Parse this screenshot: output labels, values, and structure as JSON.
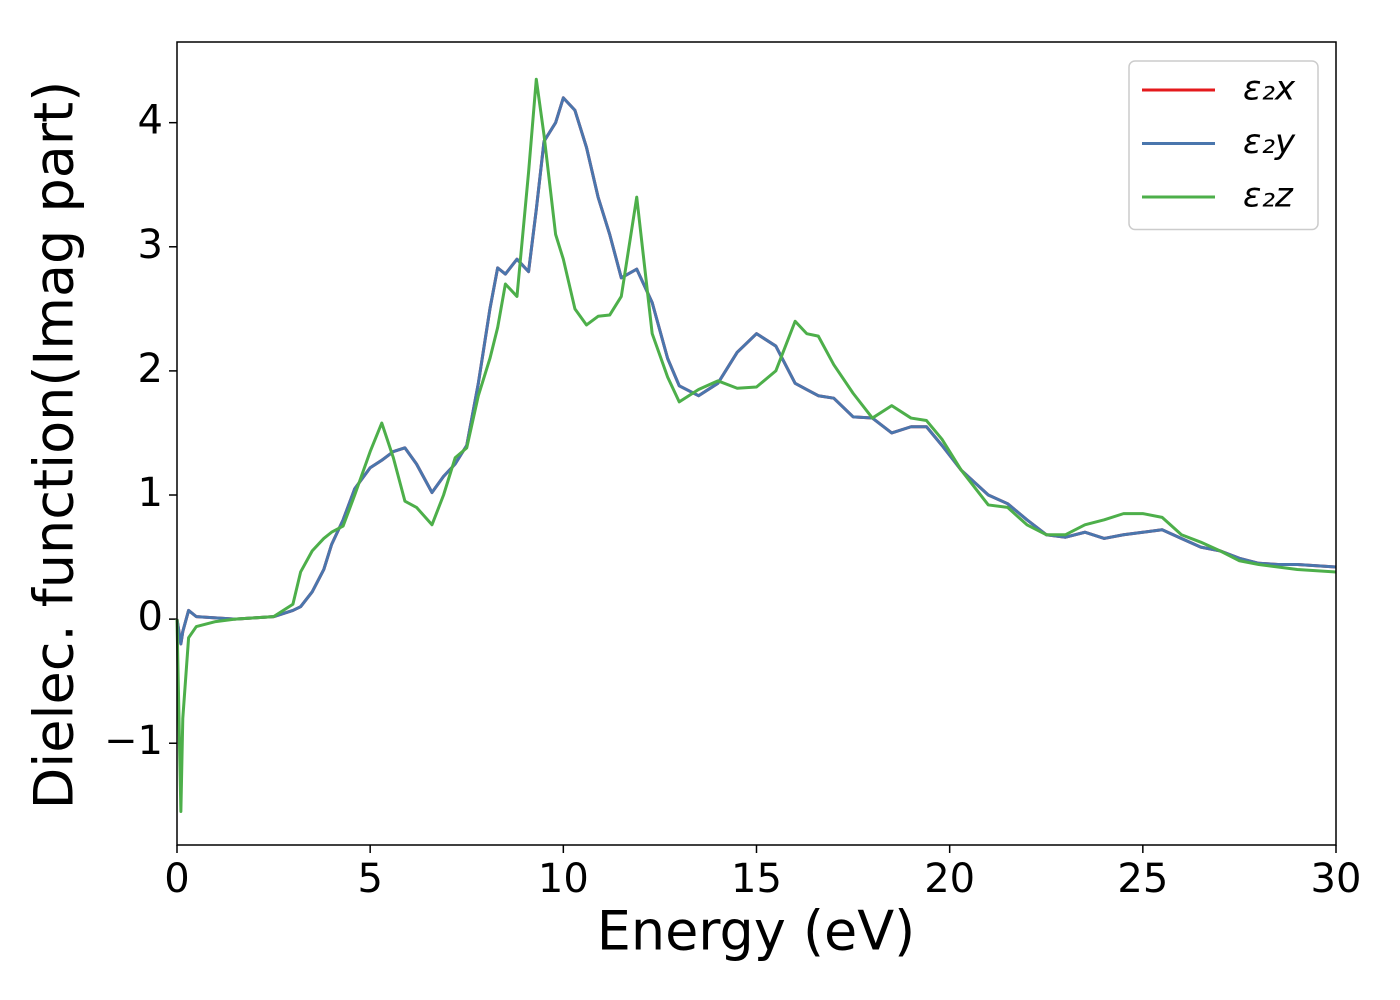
{
  "chart_data": {
    "type": "line",
    "xlabel": "Energy (eV)",
    "ylabel": "Dielec. function(Imag part)",
    "xlim": [
      0,
      30
    ],
    "ylim": [
      -1.82,
      4.65
    ],
    "xticks": [
      0,
      5,
      10,
      15,
      20,
      25,
      30
    ],
    "yticks": [
      {
        "value": -1,
        "label": "−1"
      },
      0,
      1,
      2,
      3,
      4
    ],
    "legend": "upper right",
    "x": [
      0,
      0.1,
      0.15,
      0.3,
      0.5,
      1,
      1.5,
      2,
      2.5,
      3,
      3.2,
      3.5,
      3.8,
      4,
      4.3,
      4.6,
      5,
      5.3,
      5.6,
      5.9,
      6.2,
      6.6,
      6.9,
      7.2,
      7.5,
      7.8,
      8.1,
      8.3,
      8.5,
      8.8,
      9.1,
      9.3,
      9.5,
      9.8,
      10,
      10.3,
      10.6,
      10.9,
      11.2,
      11.5,
      11.9,
      12.3,
      12.7,
      13,
      13.5,
      14,
      14.5,
      15,
      15.5,
      16,
      16.3,
      16.6,
      17,
      17.5,
      18,
      18.5,
      19,
      19.4,
      19.8,
      20.3,
      21,
      21.5,
      22,
      22.5,
      23,
      23.5,
      24,
      24.5,
      25,
      25.5,
      26,
      26.5,
      27,
      27.5,
      28,
      28.5,
      29,
      30
    ],
    "series": [
      {
        "name": "ε₂x",
        "color": "#e41a1c",
        "values": [
          0,
          -0.2,
          -0.1,
          0.07,
          0.02,
          0.01,
          0.0,
          0.01,
          0.02,
          0.07,
          0.1,
          0.22,
          0.4,
          0.6,
          0.8,
          1.05,
          1.22,
          1.28,
          1.35,
          1.38,
          1.25,
          1.02,
          1.15,
          1.25,
          1.4,
          1.9,
          2.5,
          2.83,
          2.78,
          2.9,
          2.8,
          3.3,
          3.85,
          4.0,
          4.2,
          4.1,
          3.8,
          3.4,
          3.1,
          2.75,
          2.82,
          2.55,
          2.1,
          1.88,
          1.8,
          1.9,
          2.15,
          2.3,
          2.2,
          1.9,
          1.85,
          1.8,
          1.78,
          1.63,
          1.62,
          1.5,
          1.55,
          1.55,
          1.4,
          1.2,
          1.0,
          0.93,
          0.8,
          0.68,
          0.66,
          0.7,
          0.65,
          0.68,
          0.7,
          0.72,
          0.65,
          0.58,
          0.55,
          0.49,
          0.45,
          0.44,
          0.44,
          0.42
        ]
      },
      {
        "name": "ε₂y",
        "color": "#4a76ad",
        "values": [
          0,
          -0.2,
          -0.1,
          0.07,
          0.02,
          0.01,
          0.0,
          0.01,
          0.02,
          0.07,
          0.1,
          0.22,
          0.4,
          0.6,
          0.8,
          1.05,
          1.22,
          1.28,
          1.35,
          1.38,
          1.25,
          1.02,
          1.15,
          1.25,
          1.4,
          1.9,
          2.5,
          2.83,
          2.78,
          2.9,
          2.8,
          3.3,
          3.85,
          4.0,
          4.2,
          4.1,
          3.8,
          3.4,
          3.1,
          2.75,
          2.82,
          2.55,
          2.1,
          1.88,
          1.8,
          1.9,
          2.15,
          2.3,
          2.2,
          1.9,
          1.85,
          1.8,
          1.78,
          1.63,
          1.62,
          1.5,
          1.55,
          1.55,
          1.4,
          1.2,
          1.0,
          0.93,
          0.8,
          0.68,
          0.66,
          0.7,
          0.65,
          0.68,
          0.7,
          0.72,
          0.65,
          0.58,
          0.55,
          0.49,
          0.45,
          0.44,
          0.44,
          0.42
        ]
      },
      {
        "name": "ε₂z",
        "color": "#4daf4a",
        "values": [
          0,
          -1.55,
          -0.8,
          -0.15,
          -0.06,
          -0.02,
          0.0,
          0.01,
          0.02,
          0.12,
          0.38,
          0.55,
          0.65,
          0.7,
          0.75,
          1.0,
          1.35,
          1.58,
          1.3,
          0.95,
          0.9,
          0.76,
          1.0,
          1.3,
          1.38,
          1.8,
          2.1,
          2.35,
          2.7,
          2.6,
          3.6,
          4.35,
          3.9,
          3.1,
          2.9,
          2.5,
          2.37,
          2.44,
          2.45,
          2.6,
          3.4,
          2.3,
          1.95,
          1.75,
          1.85,
          1.92,
          1.86,
          1.87,
          2.0,
          2.4,
          2.3,
          2.28,
          2.05,
          1.82,
          1.62,
          1.72,
          1.62,
          1.6,
          1.45,
          1.2,
          0.92,
          0.9,
          0.76,
          0.68,
          0.68,
          0.76,
          0.8,
          0.85,
          0.85,
          0.82,
          0.68,
          0.62,
          0.55,
          0.47,
          0.44,
          0.42,
          0.4,
          0.38
        ]
      }
    ]
  }
}
